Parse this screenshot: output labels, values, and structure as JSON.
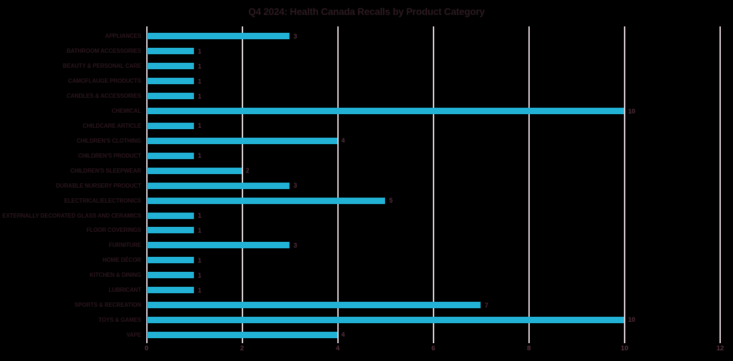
{
  "chart_data": {
    "type": "bar",
    "orientation": "horizontal",
    "title": "Q4 2024: Health Canada Recalls by Product Category",
    "categories": [
      "APPLIANCES",
      "BATHROOM ACCESSORIES",
      "BEAUTY & PERSONAL CARE",
      "CAMOFLAUGE PRODUCTS",
      "CANDLES & ACCESSORIES",
      "CHEMICAL",
      "CHILDCARE ARTICLE",
      "CHILDREN'S CLOTHING",
      "CHILDREN'S PRODUCT",
      "CHILDREN'S SLEEPWEAR",
      "DURABLE NURSERY PRODUCT",
      "ELECTRICAL/ELECTRONICS",
      "EXTERNALLY DECORATED GLASS AND CERAMICS",
      "FLOOR COVERINGS",
      "FURNITURE",
      "HOME DÉCOR",
      "KITCHEN & DINING",
      "LUBRICANT",
      "SPORTS & RECREATION",
      "TOYS & GAMES",
      "VAPE"
    ],
    "values": [
      3,
      1,
      1,
      1,
      1,
      10,
      1,
      4,
      1,
      2,
      3,
      5,
      1,
      1,
      3,
      1,
      1,
      1,
      7,
      10,
      4
    ],
    "data_labels_shown": true,
    "xlabel": "",
    "ylabel": "",
    "xlim": [
      0,
      12
    ],
    "x_ticks": [
      0,
      2,
      4,
      6,
      8,
      10,
      12
    ],
    "grid": "vertical",
    "legend": "none",
    "colors": {
      "background": "#000000",
      "bar": "#22b2d6",
      "gridline": "#d9cdd4",
      "title_text": "#2c1a20",
      "category_text": "#2c161d",
      "value_text": "#55303e",
      "tick_text": "#5b3444"
    }
  }
}
